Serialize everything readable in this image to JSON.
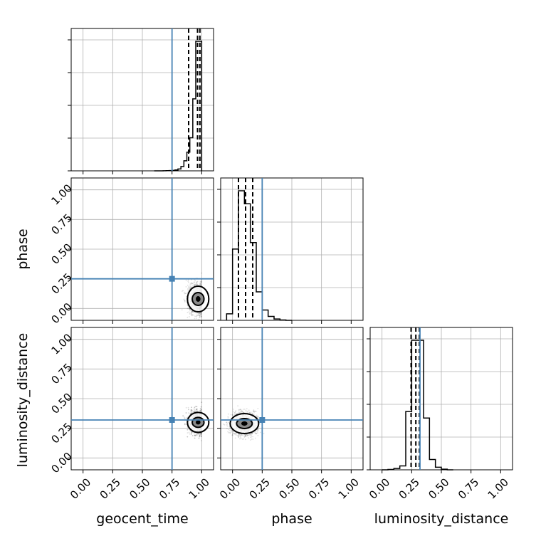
{
  "chart_data": {
    "type": "corner",
    "parameters": [
      "geocent_time",
      "phase",
      "luminosity_distance"
    ],
    "axis_labels": {
      "x": [
        "geocent_time",
        "phase",
        "luminosity_distance"
      ],
      "y": [
        "phase",
        "luminosity_distance"
      ]
    },
    "xlim": [
      -0.1,
      1.1
    ],
    "ylim": [
      -0.1,
      1.1
    ],
    "ticks": [
      0.0,
      0.25,
      0.5,
      0.75,
      1.0
    ],
    "tick_labels": [
      "0.00",
      "0.25",
      "0.50",
      "0.75",
      "1.00"
    ],
    "grid": true,
    "truth_values": {
      "geocent_time": 0.75,
      "phase": 0.25,
      "luminosity_distance": 0.32
    },
    "truth_color": "#4682b4",
    "quantiles": {
      "geocent_time": [
        0.89,
        0.965,
        0.985
      ],
      "phase": [
        0.05,
        0.11,
        0.17
      ],
      "luminosity_distance": [
        0.245,
        0.285,
        0.315
      ]
    },
    "marginals": {
      "geocent_time": {
        "bin_edges": [
          0.6,
          0.625,
          0.65,
          0.675,
          0.7,
          0.725,
          0.75,
          0.775,
          0.8,
          0.825,
          0.85,
          0.875,
          0.9,
          0.925,
          0.95,
          0.975,
          1.0
        ],
        "counts": [
          0,
          0,
          0,
          0.5,
          1,
          2,
          3,
          6,
          13,
          30,
          70,
          130,
          230,
          500,
          900,
          900
        ]
      },
      "phase": {
        "bin_edges": [
          -0.05,
          0.0,
          0.05,
          0.1,
          0.15,
          0.2,
          0.25,
          0.3,
          0.35,
          0.4,
          0.45,
          0.5
        ],
        "counts": [
          5,
          55,
          100,
          90,
          60,
          22,
          8,
          3,
          1,
          0.3,
          0
        ]
      },
      "luminosity_distance": {
        "bin_edges": [
          0.0,
          0.05,
          0.1,
          0.15,
          0.2,
          0.25,
          0.3,
          0.35,
          0.4,
          0.45,
          0.5,
          0.55,
          0.6
        ],
        "counts": [
          0,
          0.3,
          1,
          3,
          45,
          100,
          100,
          40,
          8,
          2,
          0.5,
          0
        ]
      }
    },
    "joint": {
      "phase_vs_geocent_time": {
        "x": "geocent_time",
        "y": "phase",
        "center": [
          0.97,
          0.08
        ],
        "spread": [
          0.06,
          0.09
        ],
        "contour_levels": [
          0.39,
          0.86
        ]
      },
      "luminosity_distance_vs_geocent_time": {
        "x": "geocent_time",
        "y": "luminosity_distance",
        "center": [
          0.97,
          0.3
        ],
        "spread": [
          0.06,
          0.07
        ],
        "contour_levels": [
          0.39,
          0.86
        ]
      },
      "luminosity_distance_vs_phase": {
        "x": "phase",
        "y": "luminosity_distance",
        "center": [
          0.1,
          0.29
        ],
        "spread": [
          0.08,
          0.07
        ],
        "contour_levels": [
          0.39,
          0.86
        ]
      }
    }
  }
}
